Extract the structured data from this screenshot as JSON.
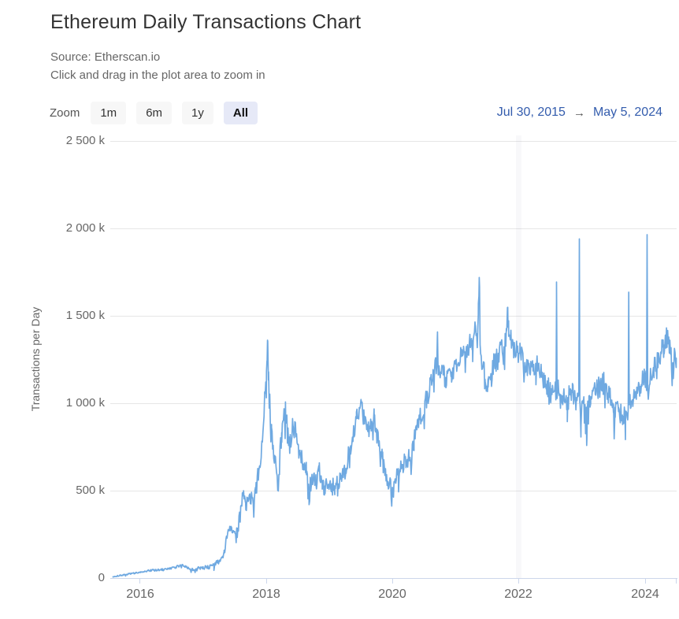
{
  "page": {
    "title": "Ethereum Daily Transactions Chart",
    "source": "Source: Etherscan.io",
    "hint": "Click and drag in the plot area to zoom in"
  },
  "controls": {
    "zoom_label": "Zoom",
    "buttons": [
      {
        "label": "1m",
        "active": false
      },
      {
        "label": "6m",
        "active": false
      },
      {
        "label": "1y",
        "active": false
      },
      {
        "label": "All",
        "active": true
      }
    ],
    "range_from": "Jul 30, 2015",
    "range_arrow": "→",
    "range_to": "May 5, 2024"
  },
  "colors": {
    "line": "#6fa9e1",
    "range_text": "#335cad",
    "active_button_bg": "#e6e9f7",
    "button_bg": "#f7f7f7",
    "gridline": "#e6e6e6",
    "axis_line": "#ccd6eb",
    "text_muted": "#666666"
  },
  "chart_data": {
    "type": "line",
    "title": "Ethereum Daily Transactions Chart",
    "source": "Etherscan.io",
    "xlabel": "",
    "ylabel": "Transactions per Day",
    "legend": "none",
    "grid": "horizontal",
    "x_range_dates": [
      "Jul 30, 2015",
      "May 5, 2024"
    ],
    "x_axis_extent_decimal_years": [
      2015.577,
      2024.47
    ],
    "ylim_transactions_per_day": [
      0,
      2500000
    ],
    "y_ticks": [
      {
        "label": "2 500 k",
        "value": 2500000
      },
      {
        "label": "2 000 k",
        "value": 2000000
      },
      {
        "label": "1 500 k",
        "value": 1500000
      },
      {
        "label": "1 000 k",
        "value": 1000000
      },
      {
        "label": "500 k",
        "value": 500000
      },
      {
        "label": "0",
        "value": 0
      }
    ],
    "x_ticks": [
      {
        "label": "2016",
        "value": 2016
      },
      {
        "label": "2018",
        "value": 2018
      },
      {
        "label": "2020",
        "value": 2020
      },
      {
        "label": "2022",
        "value": 2022
      },
      {
        "label": "2024",
        "value": 2024
      }
    ],
    "unit": "keypoint values are thousands of transactions per day; t is decimal year",
    "keypoints": [
      [
        2015.577,
        6
      ],
      [
        2015.65,
        12
      ],
      [
        2015.75,
        18
      ],
      [
        2015.83,
        24
      ],
      [
        2015.92,
        28
      ],
      [
        2016.0,
        34
      ],
      [
        2016.08,
        40
      ],
      [
        2016.17,
        44
      ],
      [
        2016.25,
        45
      ],
      [
        2016.33,
        46
      ],
      [
        2016.42,
        50
      ],
      [
        2016.5,
        56
      ],
      [
        2016.58,
        64
      ],
      [
        2016.67,
        74
      ],
      [
        2016.72,
        66
      ],
      [
        2016.75,
        58
      ],
      [
        2016.83,
        48
      ],
      [
        2016.92,
        56
      ],
      [
        2017.0,
        58
      ],
      [
        2017.08,
        62
      ],
      [
        2017.17,
        76
      ],
      [
        2017.25,
        92
      ],
      [
        2017.33,
        150
      ],
      [
        2017.42,
        295
      ],
      [
        2017.5,
        265
      ],
      [
        2017.58,
        345
      ],
      [
        2017.63,
        470
      ],
      [
        2017.67,
        430
      ],
      [
        2017.75,
        445
      ],
      [
        2017.83,
        485
      ],
      [
        2017.92,
        730
      ],
      [
        2018.0,
        1180
      ],
      [
        2018.01,
        1240
      ],
      [
        2018.02,
        1352
      ],
      [
        2018.03,
        1130
      ],
      [
        2018.05,
        1000
      ],
      [
        2018.08,
        860
      ],
      [
        2018.13,
        700
      ],
      [
        2018.18,
        545
      ],
      [
        2018.24,
        830
      ],
      [
        2018.3,
        1005
      ],
      [
        2018.35,
        760
      ],
      [
        2018.42,
        855
      ],
      [
        2018.48,
        790
      ],
      [
        2018.53,
        705
      ],
      [
        2018.58,
        650
      ],
      [
        2018.63,
        590
      ],
      [
        2018.67,
        475
      ],
      [
        2018.72,
        560
      ],
      [
        2018.78,
        590
      ],
      [
        2018.83,
        610
      ],
      [
        2018.88,
        540
      ],
      [
        2018.92,
        525
      ],
      [
        2019.0,
        545
      ],
      [
        2019.08,
        520
      ],
      [
        2019.17,
        565
      ],
      [
        2019.25,
        625
      ],
      [
        2019.33,
        755
      ],
      [
        2019.42,
        910
      ],
      [
        2019.5,
        1000
      ],
      [
        2019.55,
        880
      ],
      [
        2019.6,
        850
      ],
      [
        2019.65,
        870
      ],
      [
        2019.7,
        935
      ],
      [
        2019.75,
        800
      ],
      [
        2019.83,
        680
      ],
      [
        2019.92,
        545
      ],
      [
        2020.0,
        475
      ],
      [
        2020.05,
        560
      ],
      [
        2020.08,
        625
      ],
      [
        2020.17,
        655
      ],
      [
        2020.25,
        685
      ],
      [
        2020.33,
        785
      ],
      [
        2020.42,
        905
      ],
      [
        2020.5,
        985
      ],
      [
        2020.58,
        1105
      ],
      [
        2020.63,
        1190
      ],
      [
        2020.69,
        1230
      ],
      [
        2020.7,
        1405
      ],
      [
        2020.712,
        1160
      ],
      [
        2020.79,
        1160
      ],
      [
        2020.83,
        1145
      ],
      [
        2020.92,
        1175
      ],
      [
        2021.0,
        1205
      ],
      [
        2021.08,
        1265
      ],
      [
        2021.17,
        1305
      ],
      [
        2021.25,
        1355
      ],
      [
        2021.3,
        1440
      ],
      [
        2021.345,
        1500
      ],
      [
        2021.36,
        1716
      ],
      [
        2021.375,
        1320
      ],
      [
        2021.45,
        1135
      ],
      [
        2021.5,
        1090
      ],
      [
        2021.58,
        1205
      ],
      [
        2021.67,
        1265
      ],
      [
        2021.75,
        1320
      ],
      [
        2021.79,
        1410
      ],
      [
        2021.81,
        1545
      ],
      [
        2021.825,
        1380
      ],
      [
        2021.88,
        1330
      ],
      [
        2021.96,
        1290
      ],
      [
        2022.0,
        1285
      ],
      [
        2022.08,
        1230
      ],
      [
        2022.17,
        1185
      ],
      [
        2022.25,
        1225
      ],
      [
        2022.33,
        1165
      ],
      [
        2022.42,
        1105
      ],
      [
        2022.5,
        1060
      ],
      [
        2022.572,
        1075
      ],
      [
        2022.58,
        1690
      ],
      [
        2022.588,
        1085
      ],
      [
        2022.67,
        1040
      ],
      [
        2022.75,
        995
      ],
      [
        2022.8,
        1080
      ],
      [
        2022.83,
        1060
      ],
      [
        2022.88,
        1010
      ],
      [
        2022.932,
        1060
      ],
      [
        2022.94,
        1936
      ],
      [
        2022.948,
        1000
      ],
      [
        2022.965,
        805
      ],
      [
        2022.98,
        1000
      ],
      [
        2023.0,
        1015
      ],
      [
        2023.03,
        990
      ],
      [
        2023.05,
        975
      ],
      [
        2023.06,
        795
      ],
      [
        2023.07,
        985
      ],
      [
        2023.12,
        1035
      ],
      [
        2023.21,
        1085
      ],
      [
        2023.29,
        1095
      ],
      [
        2023.33,
        1115
      ],
      [
        2023.42,
        1035
      ],
      [
        2023.48,
        990
      ],
      [
        2023.49,
        795
      ],
      [
        2023.505,
        975
      ],
      [
        2023.56,
        950
      ],
      [
        2023.62,
        930
      ],
      [
        2023.67,
        945
      ],
      [
        2023.712,
        960
      ],
      [
        2023.72,
        1632
      ],
      [
        2023.728,
        990
      ],
      [
        2023.76,
        1010
      ],
      [
        2023.83,
        1065
      ],
      [
        2023.92,
        1105
      ],
      [
        2023.97,
        1140
      ],
      [
        2024.0,
        1120
      ],
      [
        2024.002,
        1130
      ],
      [
        2024.01,
        1960
      ],
      [
        2024.02,
        1070
      ],
      [
        2024.06,
        1150
      ],
      [
        2024.12,
        1190
      ],
      [
        2024.18,
        1240
      ],
      [
        2024.24,
        1300
      ],
      [
        2024.28,
        1330
      ],
      [
        2024.33,
        1385
      ],
      [
        2024.38,
        1300
      ],
      [
        2024.42,
        1180
      ],
      [
        2024.45,
        1290
      ],
      [
        2024.47,
        1255
      ]
    ],
    "noise_amplitude": [
      [
        2015.577,
        3
      ],
      [
        2016.3,
        6
      ],
      [
        2016.9,
        8
      ],
      [
        2017.2,
        14
      ],
      [
        2017.5,
        40
      ],
      [
        2017.9,
        55
      ],
      [
        2018.1,
        85
      ],
      [
        2018.6,
        70
      ],
      [
        2019.0,
        50
      ],
      [
        2019.5,
        55
      ],
      [
        2020.0,
        55
      ],
      [
        2020.6,
        60
      ],
      [
        2021.0,
        65
      ],
      [
        2021.5,
        75
      ],
      [
        2022.0,
        65
      ],
      [
        2022.6,
        60
      ],
      [
        2023.0,
        65
      ],
      [
        2023.6,
        60
      ],
      [
        2024.0,
        65
      ],
      [
        2024.47,
        70
      ]
    ],
    "notable_points": [
      {
        "date_approx": "Jan 2018",
        "value_k": 1352
      },
      {
        "date_approx": "Sep 2020",
        "value_k": 1405
      },
      {
        "date_approx": "May 2021",
        "value_k": 1716
      },
      {
        "date_approx": "Nov 2021",
        "value_k": 1545
      },
      {
        "date_approx": "Aug 2022",
        "value_k": 1690
      },
      {
        "date_approx": "Dec 2022",
        "value_k": 1936
      },
      {
        "date_approx": "Sep 2023",
        "value_k": 1632
      },
      {
        "date_approx": "Jan 2024",
        "value_k": 1960
      }
    ]
  }
}
